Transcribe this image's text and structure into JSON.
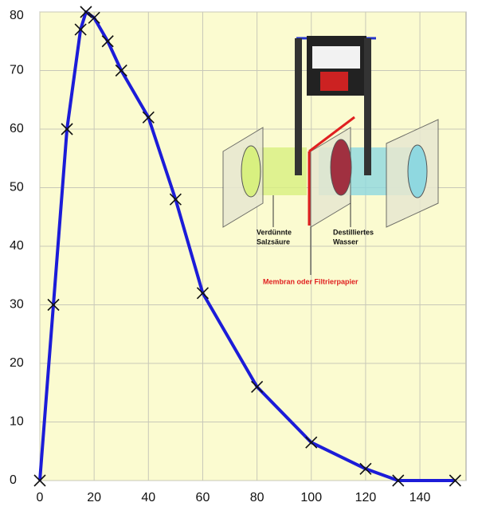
{
  "chart_data": {
    "type": "line",
    "x": [
      0,
      5,
      10,
      15,
      17,
      20,
      25,
      30,
      40,
      50,
      60,
      80,
      100,
      120,
      132,
      153
    ],
    "series": [
      {
        "color": "#1c1cd8",
        "values": [
          0,
          30,
          60,
          77,
          80,
          79,
          75,
          70,
          62,
          48,
          32,
          16,
          6.5,
          2,
          0,
          0
        ]
      }
    ],
    "xlim": [
      0,
      157
    ],
    "ylim": [
      0,
      80
    ],
    "xticks": [
      0,
      20,
      40,
      60,
      80,
      100,
      120,
      140
    ],
    "yticks": [
      0,
      10,
      20,
      30,
      40,
      50,
      60,
      70,
      80
    ],
    "grid": true,
    "marker": "x",
    "annotations": {
      "left_liquid": [
        "Verdünnte",
        "Salzsäure"
      ],
      "right_liquid": [
        "Destilliertes",
        "Wasser"
      ],
      "membrane": "Membran oder Filtrierpapier"
    }
  }
}
